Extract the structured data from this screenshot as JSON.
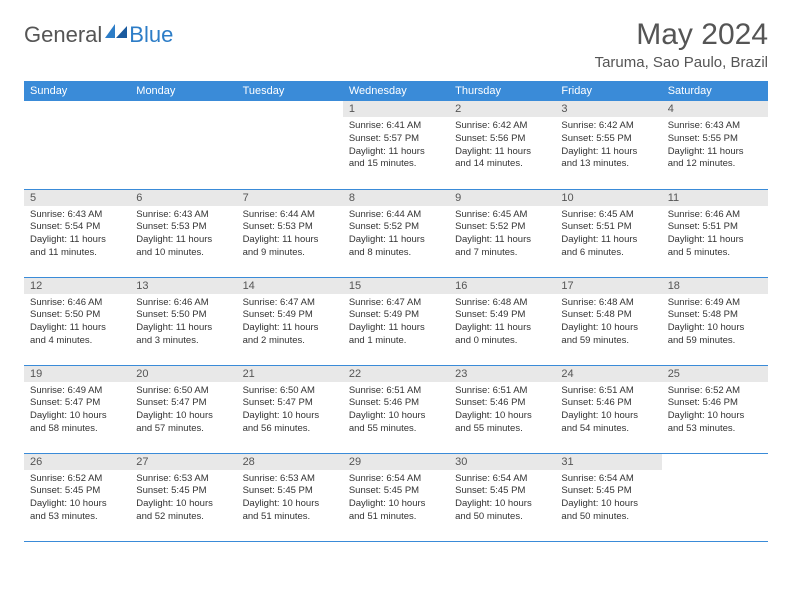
{
  "logo": {
    "text1": "General",
    "text2": "Blue"
  },
  "title": "May 2024",
  "location": "Taruma, Sao Paulo, Brazil",
  "colors": {
    "header_bg": "#3a8bd8",
    "header_text": "#ffffff",
    "daynum_bg": "#e8e8e8",
    "text": "#555555",
    "logo_blue": "#2d7dc7",
    "border": "#3a8bd8"
  },
  "weekdays": [
    "Sunday",
    "Monday",
    "Tuesday",
    "Wednesday",
    "Thursday",
    "Friday",
    "Saturday"
  ],
  "weeks": [
    [
      null,
      null,
      null,
      {
        "d": "1",
        "sr": "Sunrise: 6:41 AM",
        "ss": "Sunset: 5:57 PM",
        "dl": "Daylight: 11 hours and 15 minutes."
      },
      {
        "d": "2",
        "sr": "Sunrise: 6:42 AM",
        "ss": "Sunset: 5:56 PM",
        "dl": "Daylight: 11 hours and 14 minutes."
      },
      {
        "d": "3",
        "sr": "Sunrise: 6:42 AM",
        "ss": "Sunset: 5:55 PM",
        "dl": "Daylight: 11 hours and 13 minutes."
      },
      {
        "d": "4",
        "sr": "Sunrise: 6:43 AM",
        "ss": "Sunset: 5:55 PM",
        "dl": "Daylight: 11 hours and 12 minutes."
      }
    ],
    [
      {
        "d": "5",
        "sr": "Sunrise: 6:43 AM",
        "ss": "Sunset: 5:54 PM",
        "dl": "Daylight: 11 hours and 11 minutes."
      },
      {
        "d": "6",
        "sr": "Sunrise: 6:43 AM",
        "ss": "Sunset: 5:53 PM",
        "dl": "Daylight: 11 hours and 10 minutes."
      },
      {
        "d": "7",
        "sr": "Sunrise: 6:44 AM",
        "ss": "Sunset: 5:53 PM",
        "dl": "Daylight: 11 hours and 9 minutes."
      },
      {
        "d": "8",
        "sr": "Sunrise: 6:44 AM",
        "ss": "Sunset: 5:52 PM",
        "dl": "Daylight: 11 hours and 8 minutes."
      },
      {
        "d": "9",
        "sr": "Sunrise: 6:45 AM",
        "ss": "Sunset: 5:52 PM",
        "dl": "Daylight: 11 hours and 7 minutes."
      },
      {
        "d": "10",
        "sr": "Sunrise: 6:45 AM",
        "ss": "Sunset: 5:51 PM",
        "dl": "Daylight: 11 hours and 6 minutes."
      },
      {
        "d": "11",
        "sr": "Sunrise: 6:46 AM",
        "ss": "Sunset: 5:51 PM",
        "dl": "Daylight: 11 hours and 5 minutes."
      }
    ],
    [
      {
        "d": "12",
        "sr": "Sunrise: 6:46 AM",
        "ss": "Sunset: 5:50 PM",
        "dl": "Daylight: 11 hours and 4 minutes."
      },
      {
        "d": "13",
        "sr": "Sunrise: 6:46 AM",
        "ss": "Sunset: 5:50 PM",
        "dl": "Daylight: 11 hours and 3 minutes."
      },
      {
        "d": "14",
        "sr": "Sunrise: 6:47 AM",
        "ss": "Sunset: 5:49 PM",
        "dl": "Daylight: 11 hours and 2 minutes."
      },
      {
        "d": "15",
        "sr": "Sunrise: 6:47 AM",
        "ss": "Sunset: 5:49 PM",
        "dl": "Daylight: 11 hours and 1 minute."
      },
      {
        "d": "16",
        "sr": "Sunrise: 6:48 AM",
        "ss": "Sunset: 5:49 PM",
        "dl": "Daylight: 11 hours and 0 minutes."
      },
      {
        "d": "17",
        "sr": "Sunrise: 6:48 AM",
        "ss": "Sunset: 5:48 PM",
        "dl": "Daylight: 10 hours and 59 minutes."
      },
      {
        "d": "18",
        "sr": "Sunrise: 6:49 AM",
        "ss": "Sunset: 5:48 PM",
        "dl": "Daylight: 10 hours and 59 minutes."
      }
    ],
    [
      {
        "d": "19",
        "sr": "Sunrise: 6:49 AM",
        "ss": "Sunset: 5:47 PM",
        "dl": "Daylight: 10 hours and 58 minutes."
      },
      {
        "d": "20",
        "sr": "Sunrise: 6:50 AM",
        "ss": "Sunset: 5:47 PM",
        "dl": "Daylight: 10 hours and 57 minutes."
      },
      {
        "d": "21",
        "sr": "Sunrise: 6:50 AM",
        "ss": "Sunset: 5:47 PM",
        "dl": "Daylight: 10 hours and 56 minutes."
      },
      {
        "d": "22",
        "sr": "Sunrise: 6:51 AM",
        "ss": "Sunset: 5:46 PM",
        "dl": "Daylight: 10 hours and 55 minutes."
      },
      {
        "d": "23",
        "sr": "Sunrise: 6:51 AM",
        "ss": "Sunset: 5:46 PM",
        "dl": "Daylight: 10 hours and 55 minutes."
      },
      {
        "d": "24",
        "sr": "Sunrise: 6:51 AM",
        "ss": "Sunset: 5:46 PM",
        "dl": "Daylight: 10 hours and 54 minutes."
      },
      {
        "d": "25",
        "sr": "Sunrise: 6:52 AM",
        "ss": "Sunset: 5:46 PM",
        "dl": "Daylight: 10 hours and 53 minutes."
      }
    ],
    [
      {
        "d": "26",
        "sr": "Sunrise: 6:52 AM",
        "ss": "Sunset: 5:45 PM",
        "dl": "Daylight: 10 hours and 53 minutes."
      },
      {
        "d": "27",
        "sr": "Sunrise: 6:53 AM",
        "ss": "Sunset: 5:45 PM",
        "dl": "Daylight: 10 hours and 52 minutes."
      },
      {
        "d": "28",
        "sr": "Sunrise: 6:53 AM",
        "ss": "Sunset: 5:45 PM",
        "dl": "Daylight: 10 hours and 51 minutes."
      },
      {
        "d": "29",
        "sr": "Sunrise: 6:54 AM",
        "ss": "Sunset: 5:45 PM",
        "dl": "Daylight: 10 hours and 51 minutes."
      },
      {
        "d": "30",
        "sr": "Sunrise: 6:54 AM",
        "ss": "Sunset: 5:45 PM",
        "dl": "Daylight: 10 hours and 50 minutes."
      },
      {
        "d": "31",
        "sr": "Sunrise: 6:54 AM",
        "ss": "Sunset: 5:45 PM",
        "dl": "Daylight: 10 hours and 50 minutes."
      },
      null
    ]
  ]
}
